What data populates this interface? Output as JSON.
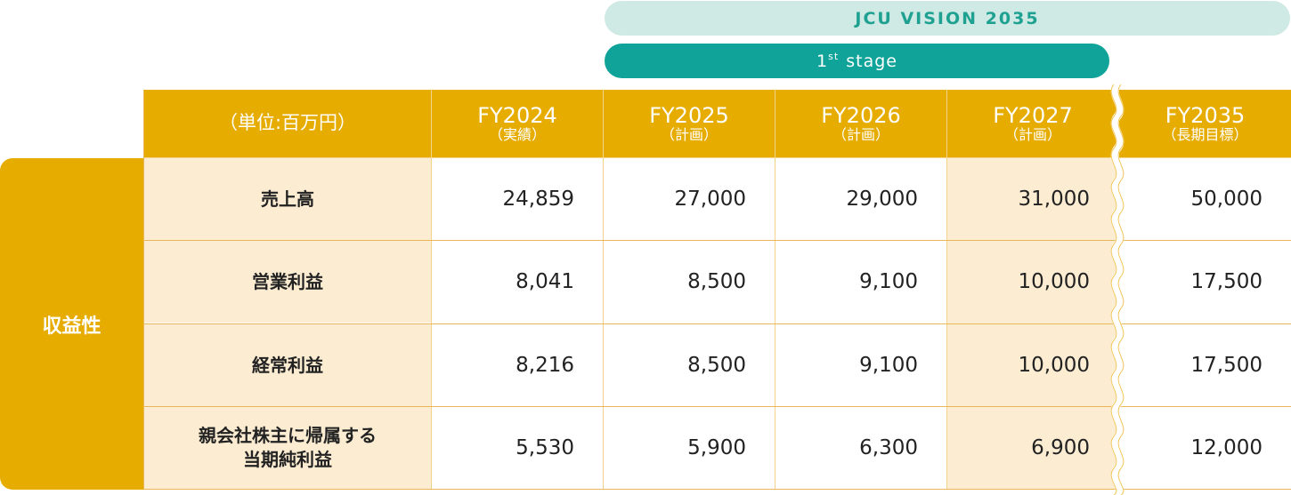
{
  "banners": {
    "vision": "JCU VISION 2035",
    "stage_sup": "st",
    "stage_num": "1",
    "stage_text": "stage"
  },
  "table": {
    "unit": "（単位:百万円）",
    "columns": [
      {
        "year": "FY2024",
        "sub": "（実績）"
      },
      {
        "year": "FY2025",
        "sub": "（計画）"
      },
      {
        "year": "FY2026",
        "sub": "（計画）"
      },
      {
        "year": "FY2027",
        "sub": "（計画）"
      },
      {
        "year": "FY2035",
        "sub": "（長期目標）"
      }
    ],
    "category": "収益性",
    "rows": [
      {
        "label1": "売上高",
        "label2": "",
        "values": [
          "24,859",
          "27,000",
          "29,000",
          "31,000",
          "50,000"
        ]
      },
      {
        "label1": "営業利益",
        "label2": "",
        "values": [
          "8,041",
          "8,500",
          "9,100",
          "10,000",
          "17,500"
        ]
      },
      {
        "label1": "経常利益",
        "label2": "",
        "values": [
          "8,216",
          "8,500",
          "9,100",
          "10,000",
          "17,500"
        ]
      },
      {
        "label1": "親会社株主に帰属する",
        "label2": "当期純利益",
        "values": [
          "5,530",
          "5,900",
          "6,300",
          "6,900",
          "12,000"
        ]
      }
    ]
  },
  "colors": {
    "header": "#e6ac00",
    "highlight": "#fbecd2",
    "teal": "#0fa39a",
    "teal_light": "#cfe9e4"
  }
}
